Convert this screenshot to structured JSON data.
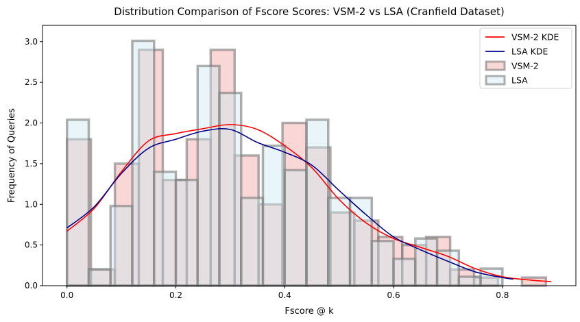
{
  "chart_data": {
    "type": "bar",
    "title": "Distribution Comparison of Fscore Scores: VSM-2 vs LSA (Cranfield Dataset)",
    "xlabel": "Fscore @ k",
    "ylabel": "Frequency of Queries",
    "xlim": [
      -0.045,
      0.935
    ],
    "ylim": [
      0,
      3.2
    ],
    "xticks": [
      0.0,
      0.2,
      0.4,
      0.6,
      0.8
    ],
    "xtick_labels": [
      "0.0",
      "0.2",
      "0.4",
      "0.6",
      "0.8"
    ],
    "yticks": [
      0.0,
      0.5,
      1.0,
      1.5,
      2.0,
      2.5,
      3.0
    ],
    "ytick_labels": [
      "0.0",
      "0.5",
      "1.0",
      "1.5",
      "2.0",
      "2.5",
      "3.0"
    ],
    "grid": false,
    "legend_position": "top-right",
    "histograms": [
      {
        "name": "VSM-2",
        "color": "#f4a6a6",
        "bins": [
          {
            "x0": 0.0,
            "x1": 0.044,
            "value": 1.8
          },
          {
            "x0": 0.044,
            "x1": 0.088,
            "value": 0.2
          },
          {
            "x0": 0.088,
            "x1": 0.132,
            "value": 1.5
          },
          {
            "x0": 0.132,
            "x1": 0.176,
            "value": 2.9
          },
          {
            "x0": 0.176,
            "x1": 0.22,
            "value": 1.3
          },
          {
            "x0": 0.22,
            "x1": 0.264,
            "value": 1.8
          },
          {
            "x0": 0.264,
            "x1": 0.308,
            "value": 2.9
          },
          {
            "x0": 0.308,
            "x1": 0.352,
            "value": 1.6
          },
          {
            "x0": 0.352,
            "x1": 0.396,
            "value": 1.0
          },
          {
            "x0": 0.396,
            "x1": 0.44,
            "value": 2.0
          },
          {
            "x0": 0.44,
            "x1": 0.484,
            "value": 1.7
          },
          {
            "x0": 0.484,
            "x1": 0.528,
            "value": 0.9
          },
          {
            "x0": 0.528,
            "x1": 0.572,
            "value": 0.8
          },
          {
            "x0": 0.572,
            "x1": 0.616,
            "value": 0.6
          },
          {
            "x0": 0.616,
            "x1": 0.66,
            "value": 0.5
          },
          {
            "x0": 0.66,
            "x1": 0.704,
            "value": 0.6
          },
          {
            "x0": 0.704,
            "x1": 0.748,
            "value": 0.2
          },
          {
            "x0": 0.748,
            "x1": 0.792,
            "value": 0.1
          },
          {
            "x0": 0.792,
            "x1": 0.836,
            "value": 0.0
          },
          {
            "x0": 0.836,
            "x1": 0.88,
            "value": 0.1
          }
        ]
      },
      {
        "name": "LSA",
        "color": "#cfe8f0",
        "bins": [
          {
            "x0": 0.0,
            "x1": 0.04,
            "value": 2.04
          },
          {
            "x0": 0.04,
            "x1": 0.08,
            "value": 0.2
          },
          {
            "x0": 0.08,
            "x1": 0.12,
            "value": 0.98
          },
          {
            "x0": 0.12,
            "x1": 0.16,
            "value": 3.01
          },
          {
            "x0": 0.16,
            "x1": 0.2,
            "value": 1.4
          },
          {
            "x0": 0.2,
            "x1": 0.24,
            "value": 1.3
          },
          {
            "x0": 0.24,
            "x1": 0.28,
            "value": 2.7
          },
          {
            "x0": 0.28,
            "x1": 0.32,
            "value": 2.37
          },
          {
            "x0": 0.32,
            "x1": 0.36,
            "value": 1.08
          },
          {
            "x0": 0.36,
            "x1": 0.4,
            "value": 1.72
          },
          {
            "x0": 0.4,
            "x1": 0.44,
            "value": 1.42
          },
          {
            "x0": 0.44,
            "x1": 0.48,
            "value": 2.04
          },
          {
            "x0": 0.48,
            "x1": 0.52,
            "value": 1.08
          },
          {
            "x0": 0.52,
            "x1": 0.56,
            "value": 1.08
          },
          {
            "x0": 0.56,
            "x1": 0.6,
            "value": 0.55
          },
          {
            "x0": 0.6,
            "x1": 0.64,
            "value": 0.33
          },
          {
            "x0": 0.64,
            "x1": 0.68,
            "value": 0.58
          },
          {
            "x0": 0.68,
            "x1": 0.72,
            "value": 0.43
          },
          {
            "x0": 0.72,
            "x1": 0.76,
            "value": 0.11
          },
          {
            "x0": 0.76,
            "x1": 0.8,
            "value": 0.21
          }
        ]
      }
    ],
    "kde_series": [
      {
        "name": "VSM-2 KDE",
        "color": "#ff0000",
        "x": [
          0.0,
          0.05,
          0.1,
          0.15,
          0.2,
          0.25,
          0.3,
          0.35,
          0.4,
          0.45,
          0.5,
          0.55,
          0.6,
          0.65,
          0.7,
          0.75,
          0.8,
          0.85,
          0.89
        ],
        "y": [
          0.67,
          0.95,
          1.4,
          1.78,
          1.87,
          1.93,
          1.98,
          1.92,
          1.72,
          1.45,
          1.06,
          0.77,
          0.58,
          0.47,
          0.36,
          0.21,
          0.11,
          0.07,
          0.05
        ]
      },
      {
        "name": "LSA KDE",
        "color": "#00008b",
        "x": [
          0.0,
          0.05,
          0.1,
          0.15,
          0.2,
          0.25,
          0.3,
          0.35,
          0.4,
          0.45,
          0.5,
          0.55,
          0.6,
          0.65,
          0.7,
          0.75,
          0.8,
          0.82
        ],
        "y": [
          0.71,
          0.97,
          1.38,
          1.69,
          1.8,
          1.9,
          1.92,
          1.76,
          1.64,
          1.48,
          1.17,
          0.87,
          0.6,
          0.44,
          0.3,
          0.17,
          0.1,
          0.08
        ]
      }
    ],
    "legend": [
      {
        "label": "VSM-2 KDE",
        "kind": "line",
        "color": "#ff0000"
      },
      {
        "label": "LSA KDE",
        "kind": "line",
        "color": "#00008b"
      },
      {
        "label": "VSM-2",
        "kind": "patch",
        "color": "#f4a6a6"
      },
      {
        "label": "LSA",
        "kind": "patch",
        "color": "#cfe8f0"
      }
    ]
  }
}
